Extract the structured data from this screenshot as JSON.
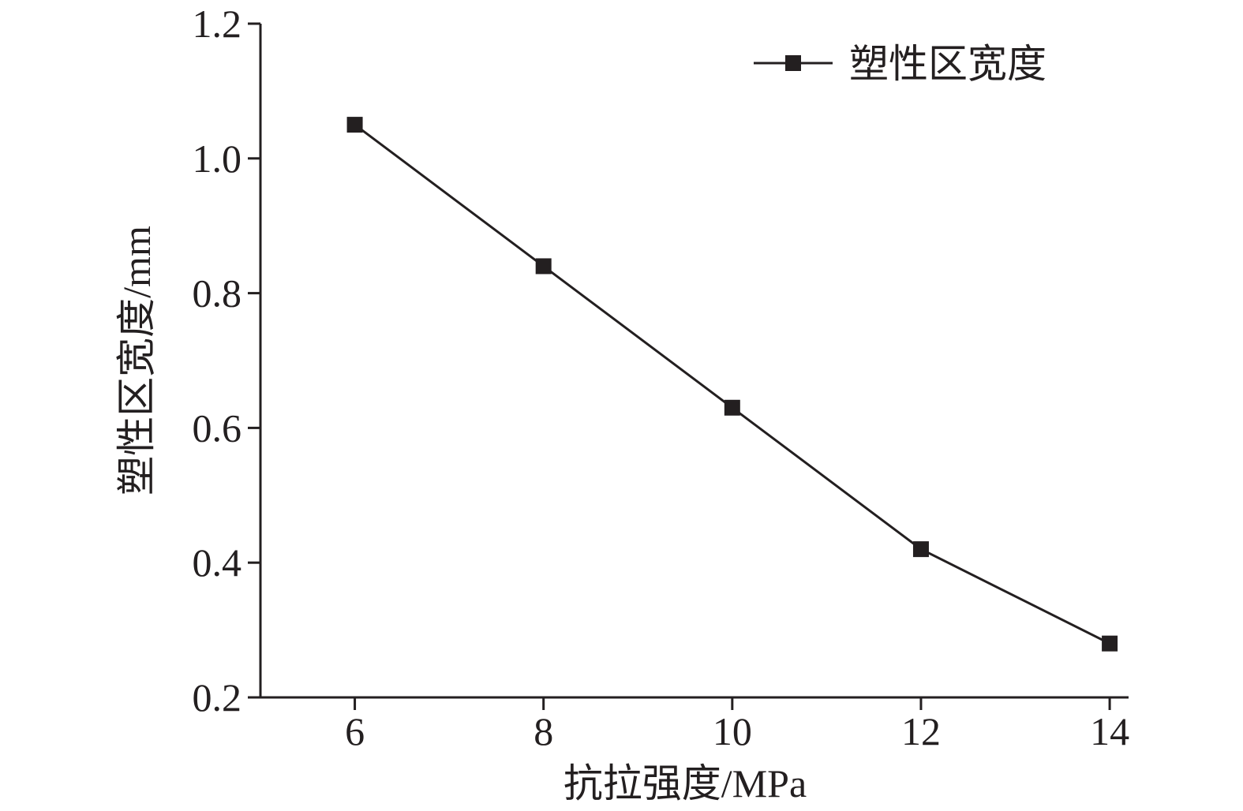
{
  "chart_data": {
    "type": "line",
    "title": "",
    "xlabel": "抗拉强度/MPa",
    "ylabel": "塑性区宽度/mm",
    "x": [
      6,
      8,
      10,
      12,
      14
    ],
    "series": [
      {
        "name": "塑性区宽度",
        "values": [
          1.05,
          0.84,
          0.63,
          0.42,
          0.28
        ],
        "marker": "square",
        "color": "#231f20"
      }
    ],
    "xlim": [
      5,
      14.2
    ],
    "ylim": [
      0.2,
      1.2
    ],
    "xticks": [
      "6",
      "8",
      "10",
      "12",
      "14"
    ],
    "yticks": [
      "0.2",
      "0.4",
      "0.6",
      "0.8",
      "1.0",
      "1.2"
    ],
    "grid": false,
    "legend_position": "top-right"
  }
}
